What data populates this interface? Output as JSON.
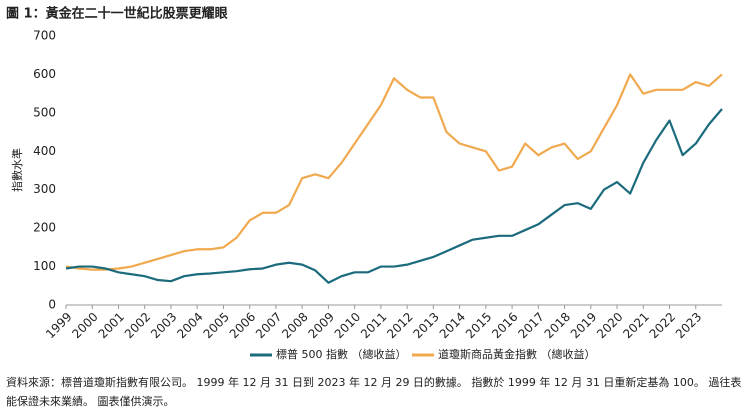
{
  "chart_data": {
    "type": "line",
    "title": "圖 1：黃金在二十一世紀比股票更耀眼",
    "y_label": "指數水準",
    "footnote": [
      "資料來源：標普道瓊斯指數有限公司。 1999 年 12 月 31 日到 2023 年 12 月 29 日的數據。 指數於 1999 年 12 月 31 日重新定基為 100。 過往表現並不",
      "能保證未來業績。 圖表僅供演示。"
    ],
    "x": [
      1999,
      1999.5,
      2000,
      2000.5,
      2001,
      2001.5,
      2002,
      2002.5,
      2003,
      2003.5,
      2004,
      2004.5,
      2005,
      2005.5,
      2006,
      2006.5,
      2007,
      2007.5,
      2008,
      2008.5,
      2009,
      2009.5,
      2010,
      2010.5,
      2011,
      2011.5,
      2012,
      2012.5,
      2013,
      2013.5,
      2014,
      2014.5,
      2015,
      2015.5,
      2016,
      2016.5,
      2017,
      2017.5,
      2018,
      2018.5,
      2019,
      2019.5,
      2020,
      2020.5,
      2021,
      2021.5,
      2022,
      2022.5,
      2023,
      2023.5,
      2024
    ],
    "series": [
      {
        "name": "標普 500 指數 （總收益）",
        "color": "#1b6b7d",
        "values": [
          95,
          100,
          100,
          95,
          85,
          80,
          75,
          65,
          62,
          75,
          80,
          82,
          85,
          88,
          93,
          95,
          105,
          110,
          105,
          90,
          58,
          75,
          85,
          85,
          100,
          100,
          105,
          115,
          125,
          140,
          155,
          170,
          175,
          180,
          180,
          195,
          210,
          235,
          260,
          265,
          250,
          300,
          320,
          290,
          370,
          430,
          480,
          390,
          420,
          470,
          510
        ]
      },
      {
        "name": "道瓊斯商品黃金指數 （總收益）",
        "color": "#f0a94e",
        "values": [
          100,
          95,
          92,
          92,
          95,
          100,
          110,
          120,
          130,
          140,
          145,
          145,
          150,
          175,
          220,
          240,
          240,
          260,
          330,
          340,
          330,
          370,
          420,
          470,
          520,
          590,
          560,
          540,
          540,
          450,
          420,
          410,
          400,
          350,
          360,
          420,
          390,
          410,
          420,
          380,
          400,
          460,
          520,
          600,
          550,
          560,
          560,
          560,
          580,
          570,
          600
        ]
      }
    ],
    "xlim": [
      1999,
      2024
    ],
    "xticks": [
      1999,
      2000,
      2001,
      2002,
      2003,
      2004,
      2005,
      2006,
      2007,
      2008,
      2009,
      2010,
      2011,
      2012,
      2013,
      2014,
      2015,
      2016,
      2017,
      2018,
      2019,
      2020,
      2021,
      2022,
      2023
    ],
    "ylim": [
      0,
      700
    ],
    "yticks": [
      0,
      100,
      200,
      300,
      400,
      500,
      600,
      700
    ],
    "legend": "bottom"
  }
}
